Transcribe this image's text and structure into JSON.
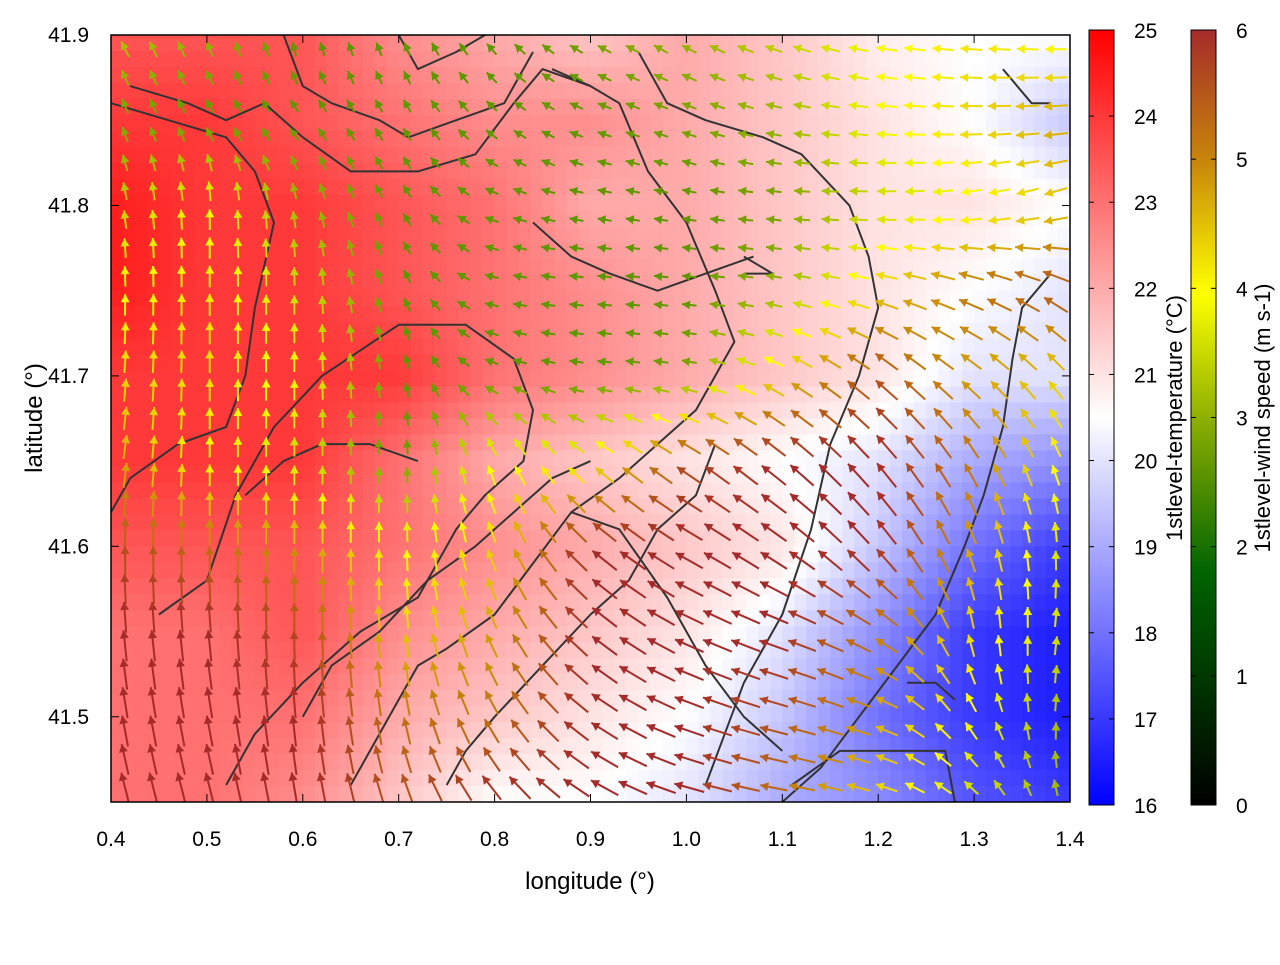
{
  "chart_data": {
    "type": "heatmap",
    "title": "",
    "xlabel": "longitude (°)",
    "ylabel": "latitude (°)",
    "xlim": [
      0.4,
      1.4
    ],
    "ylim": [
      41.45,
      41.9
    ],
    "x_ticks": [
      0.4,
      0.5,
      0.6,
      0.7,
      0.8,
      0.9,
      1.0,
      1.1,
      1.2,
      1.3,
      1.4
    ],
    "x_tick_labels": [
      "0.4",
      "0.5",
      "0.6",
      "0.7",
      "0.8",
      "0.9",
      "1.0",
      "1.1",
      "1.2",
      "1.3",
      "1.4"
    ],
    "y_ticks": [
      41.5,
      41.6,
      41.7,
      41.8,
      41.9
    ],
    "y_tick_labels": [
      "41.5",
      "41.6",
      "41.7",
      "41.8",
      "41.9"
    ],
    "temperature_field": {
      "colorbar_label": "1stlevel-temperature (°C)",
      "range": [
        16,
        25
      ],
      "ticks": [
        "16",
        "17",
        "18",
        "19",
        "20",
        "21",
        "22",
        "23",
        "24",
        "25"
      ],
      "colormap": [
        "#0000ff",
        "#ffffff",
        "#ff0000"
      ],
      "lon": [
        0.4,
        0.5,
        0.6,
        0.7,
        0.8,
        0.9,
        1.0,
        1.1,
        1.2,
        1.3,
        1.4
      ],
      "lat": [
        41.9,
        41.85,
        41.8,
        41.75,
        41.7,
        41.65,
        41.6,
        41.55,
        41.5,
        41.45
      ],
      "values": [
        [
          23.5,
          23.5,
          23.5,
          22.5,
          22.0,
          21.5,
          22.0,
          21.5,
          20.8,
          20.5,
          20.5
        ],
        [
          24.0,
          24.0,
          23.5,
          23.0,
          22.5,
          22.5,
          22.0,
          21.5,
          21.0,
          20.5,
          19.5
        ],
        [
          24.5,
          24.0,
          24.0,
          23.5,
          23.0,
          22.0,
          22.0,
          21.5,
          21.0,
          21.0,
          20.5
        ],
        [
          24.5,
          24.0,
          24.0,
          23.5,
          23.0,
          22.5,
          22.0,
          21.5,
          21.0,
          20.5,
          20.0
        ],
        [
          24.0,
          24.0,
          24.0,
          24.0,
          23.0,
          22.5,
          22.0,
          21.5,
          21.0,
          20.0,
          20.0
        ],
        [
          24.0,
          24.0,
          24.0,
          23.0,
          22.0,
          21.5,
          21.0,
          20.5,
          20.0,
          19.0,
          18.5
        ],
        [
          23.5,
          23.5,
          23.5,
          23.0,
          22.5,
          22.0,
          21.5,
          21.0,
          19.5,
          18.0,
          17.0
        ],
        [
          23.0,
          23.0,
          23.5,
          22.5,
          22.0,
          21.5,
          21.0,
          20.0,
          18.5,
          17.0,
          16.5
        ],
        [
          23.0,
          23.0,
          23.0,
          22.0,
          21.5,
          21.0,
          20.5,
          19.5,
          18.0,
          17.0,
          16.5
        ],
        [
          23.0,
          23.0,
          22.5,
          21.5,
          20.5,
          20.5,
          20.0,
          19.0,
          18.5,
          17.5,
          17.0
        ]
      ]
    },
    "wind_field": {
      "colorbar_label": "1stlevel-wind speed (m s-1)",
      "range": [
        0,
        6
      ],
      "ticks": [
        "0",
        "1",
        "2",
        "3",
        "4",
        "5",
        "6"
      ],
      "colormap": [
        "#000000",
        "#006400",
        "#8fb000",
        "#ffff00",
        "#c8860a",
        "#a52a2a"
      ],
      "lon": [
        0.4,
        0.5,
        0.6,
        0.7,
        0.8,
        0.9,
        1.0,
        1.1,
        1.2,
        1.3,
        1.4
      ],
      "lat": [
        41.9,
        41.85,
        41.8,
        41.75,
        41.7,
        41.65,
        41.6,
        41.55,
        41.5,
        41.45
      ],
      "speed": [
        [
          2.8,
          2.5,
          2.0,
          2.0,
          2.0,
          2.2,
          2.5,
          3.0,
          3.5,
          3.8,
          3.5
        ],
        [
          2.2,
          2.0,
          2.0,
          2.0,
          2.0,
          2.0,
          2.2,
          2.5,
          3.5,
          4.0,
          4.5
        ],
        [
          2.8,
          3.5,
          2.5,
          2.0,
          2.0,
          2.0,
          2.0,
          2.2,
          3.0,
          3.5,
          4.2
        ],
        [
          3.5,
          3.8,
          3.0,
          2.0,
          2.0,
          2.0,
          2.0,
          2.5,
          4.0,
          5.0,
          5.5
        ],
        [
          4.0,
          4.0,
          3.5,
          2.0,
          2.0,
          2.0,
          2.2,
          4.0,
          5.5,
          4.5,
          4.0
        ],
        [
          4.5,
          3.5,
          3.0,
          2.0,
          3.5,
          3.5,
          5.5,
          6.0,
          6.0,
          5.0,
          3.5
        ],
        [
          5.5,
          5.0,
          4.5,
          3.5,
          4.0,
          6.0,
          6.0,
          6.0,
          6.0,
          4.5,
          3.0
        ],
        [
          6.0,
          6.0,
          5.5,
          4.0,
          4.5,
          6.0,
          6.0,
          6.0,
          5.0,
          4.0,
          3.0
        ],
        [
          6.0,
          6.0,
          6.0,
          5.0,
          5.0,
          6.0,
          6.0,
          5.5,
          4.5,
          3.5,
          2.5
        ],
        [
          6.0,
          6.0,
          6.0,
          5.5,
          6.0,
          6.0,
          6.0,
          5.0,
          4.0,
          3.0,
          2.5
        ]
      ],
      "direction_to_deg": [
        [
          120,
          110,
          100,
          110,
          130,
          150,
          150,
          160,
          170,
          175,
          180
        ],
        [
          110,
          120,
          130,
          120,
          140,
          160,
          160,
          170,
          175,
          180,
          185
        ],
        [
          100,
          90,
          100,
          120,
          160,
          170,
          170,
          175,
          180,
          190,
          200
        ],
        [
          90,
          90,
          90,
          110,
          170,
          175,
          175,
          170,
          165,
          160,
          150
        ],
        [
          85,
          90,
          90,
          100,
          160,
          175,
          170,
          150,
          140,
          140,
          130
        ],
        [
          80,
          90,
          90,
          90,
          110,
          140,
          145,
          140,
          130,
          120,
          110
        ],
        [
          90,
          90,
          90,
          90,
          110,
          140,
          150,
          145,
          130,
          110,
          90
        ],
        [
          95,
          95,
          90,
          95,
          115,
          140,
          155,
          160,
          150,
          100,
          80
        ],
        [
          100,
          100,
          95,
          100,
          120,
          145,
          160,
          165,
          160,
          120,
          80
        ],
        [
          105,
          105,
          100,
          110,
          130,
          150,
          165,
          170,
          165,
          140,
          100
        ]
      ]
    },
    "contours": {
      "color": "#333333"
    }
  }
}
